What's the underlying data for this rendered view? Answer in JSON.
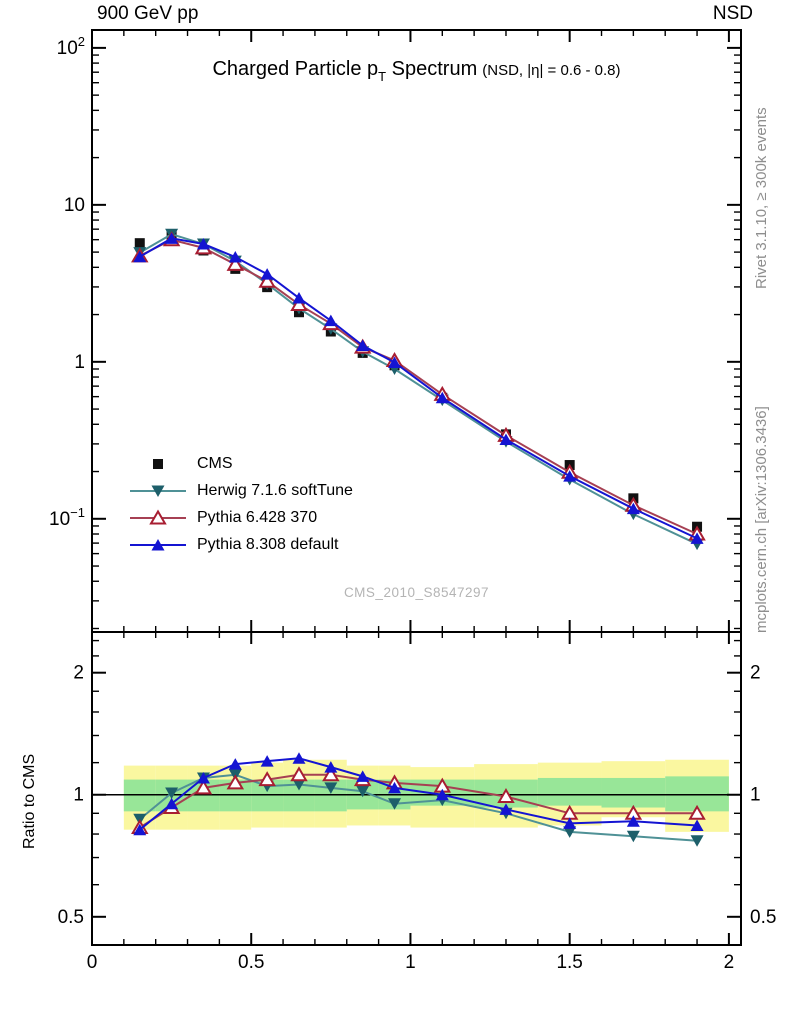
{
  "header": {
    "left": "900 GeV pp",
    "right": "NSD"
  },
  "title": {
    "main": "Charged Particle p",
    "sub": "T",
    "tail": " Spectrum",
    "condition": "(NSD, |η| = 0.6 - 0.8)"
  },
  "watermark": "CMS_2010_S8547297",
  "side_captions": {
    "top": "Rivet 3.1.10, ≥ 300k events",
    "bottom": "mcplots.cern.ch [arXiv:1306.3436]"
  },
  "ratio_ylabel": "Ratio to CMS",
  "colors": {
    "frame": "#000000",
    "cms": "#111111",
    "herwig_line": "#4f9196",
    "herwig_marker": "#1d5f6a",
    "pythia6_line": "#a64053",
    "pythia6_marker": "#a81e32",
    "pythia8": "#1414d2",
    "band_yellow": "#faf7a0",
    "band_green": "#98e698",
    "caption_gray": "#8e8e8e",
    "watermark_gray": "#b4b4b4"
  },
  "legend": [
    {
      "label": "CMS",
      "marker": "square",
      "color": "#111111",
      "line": false,
      "line_color": "#111111"
    },
    {
      "label": "Herwig 7.1.6 softTune",
      "marker": "triangle-down",
      "color": "#1d5f6a",
      "line": true,
      "line_color": "#4f9196"
    },
    {
      "label": "Pythia 6.428 370",
      "marker": "triangle-open",
      "color": "#a81e32",
      "line": true,
      "line_color": "#a64053"
    },
    {
      "label": "Pythia 8.308 default",
      "marker": "triangle-up",
      "color": "#1414d2",
      "line": true,
      "line_color": "#1414d2"
    }
  ],
  "chart_data": [
    {
      "id": "spectrum",
      "type": "line",
      "title": "Charged Particle pT Spectrum (NSD, |eta| = 0.6 - 0.8)",
      "xlabel": "",
      "ylabel": "",
      "yscale": "log",
      "xlim": [
        0,
        2.038
      ],
      "ylim": [
        0.019,
        130
      ],
      "grid": false,
      "x": [
        0.15,
        0.25,
        0.35,
        0.45,
        0.55,
        0.65,
        0.75,
        0.85,
        0.95,
        1.1,
        1.3,
        1.5,
        1.7,
        1.9
      ],
      "series": [
        {
          "name": "CMS",
          "marker": "square",
          "color": "#111111",
          "line": false,
          "line_color": "#111111",
          "values": [
            5.7,
            6.44,
            5.12,
            3.91,
            2.99,
            2.07,
            1.56,
            1.14,
            0.95,
            0.59,
            0.345,
            0.22,
            0.135,
            0.089
          ]
        },
        {
          "name": "Herwig 7.1.6 softTune",
          "marker": "triangle-down",
          "color": "#1d5f6a",
          "line": true,
          "line_color": "#4f9196",
          "values": [
            4.96,
            6.5,
            5.63,
            4.38,
            3.14,
            2.19,
            1.62,
            1.16,
            0.9,
            0.57,
            0.31,
            0.178,
            0.107,
            0.069
          ]
        },
        {
          "name": "Pythia 6.428 370",
          "marker": "triangle-open",
          "color": "#a81e32",
          "line": true,
          "line_color": "#a64053",
          "values": [
            4.73,
            5.99,
            5.32,
            4.18,
            3.26,
            2.32,
            1.75,
            1.24,
            1.02,
            0.62,
            0.34,
            0.198,
            0.122,
            0.08
          ]
        },
        {
          "name": "Pythia 8.308 default",
          "marker": "triangle-up",
          "color": "#1414d2",
          "line": true,
          "line_color": "#1414d2",
          "values": [
            4.67,
            6.12,
            5.63,
            4.65,
            3.62,
            2.55,
            1.83,
            1.27,
            0.99,
            0.59,
            0.32,
            0.187,
            0.116,
            0.075
          ]
        }
      ],
      "yticks": [
        {
          "v": 100,
          "base": "10",
          "exp": "2"
        },
        {
          "v": 10,
          "base": "10",
          "exp": ""
        },
        {
          "v": 1,
          "base": "1",
          "exp": ""
        },
        {
          "v": 0.1,
          "base": "10",
          "exp": "−1"
        }
      ],
      "xticks": [
        {
          "v": 0,
          "label": ""
        },
        {
          "v": 0.5,
          "label": ""
        },
        {
          "v": 1,
          "label": ""
        },
        {
          "v": 1.5,
          "label": ""
        },
        {
          "v": 2,
          "label": ""
        }
      ]
    },
    {
      "id": "ratio",
      "type": "line",
      "title": "Ratio to CMS",
      "xlabel": "",
      "ylabel": "Ratio to CMS",
      "yscale": "log",
      "xlim": [
        0,
        2.038
      ],
      "ylim": [
        0.426,
        2.52
      ],
      "grid": false,
      "ref_line": 1,
      "x": [
        0.15,
        0.25,
        0.35,
        0.45,
        0.55,
        0.65,
        0.75,
        0.85,
        0.95,
        1.1,
        1.3,
        1.5,
        1.7,
        1.9
      ],
      "series": [
        {
          "name": "Herwig 7.1.6 softTune",
          "marker": "triangle-down",
          "color": "#1d5f6a",
          "line": true,
          "line_color": "#4f9196",
          "values": [
            0.87,
            1.01,
            1.1,
            1.12,
            1.05,
            1.06,
            1.04,
            1.02,
            0.95,
            0.97,
            0.9,
            0.81,
            0.79,
            0.77
          ]
        },
        {
          "name": "Pythia 6.428 370",
          "marker": "triangle-open",
          "color": "#a81e32",
          "line": true,
          "line_color": "#a64053",
          "values": [
            0.83,
            0.93,
            1.04,
            1.07,
            1.09,
            1.12,
            1.12,
            1.09,
            1.07,
            1.05,
            0.99,
            0.9,
            0.9,
            0.9
          ]
        },
        {
          "name": "Pythia 8.308 default",
          "marker": "triangle-up",
          "color": "#1414d2",
          "line": true,
          "line_color": "#1414d2",
          "values": [
            0.82,
            0.95,
            1.1,
            1.19,
            1.21,
            1.23,
            1.17,
            1.11,
            1.04,
            1.0,
            0.92,
            0.85,
            0.86,
            0.84
          ]
        }
      ],
      "bands": [
        {
          "x0": 0.1,
          "x1": 0.2,
          "yellow": [
            0.82,
            1.18
          ],
          "green": [
            0.91,
            1.09
          ]
        },
        {
          "x0": 0.2,
          "x1": 0.3,
          "yellow": [
            0.82,
            1.18
          ],
          "green": [
            0.91,
            1.09
          ]
        },
        {
          "x0": 0.3,
          "x1": 0.4,
          "yellow": [
            0.82,
            1.18
          ],
          "green": [
            0.91,
            1.09
          ]
        },
        {
          "x0": 0.4,
          "x1": 0.5,
          "yellow": [
            0.82,
            1.18
          ],
          "green": [
            0.91,
            1.09
          ]
        },
        {
          "x0": 0.5,
          "x1": 0.6,
          "yellow": [
            0.83,
            1.2
          ],
          "green": [
            0.91,
            1.09
          ]
        },
        {
          "x0": 0.6,
          "x1": 0.7,
          "yellow": [
            0.83,
            1.22
          ],
          "green": [
            0.91,
            1.09
          ]
        },
        {
          "x0": 0.7,
          "x1": 0.8,
          "yellow": [
            0.83,
            1.22
          ],
          "green": [
            0.91,
            1.09
          ]
        },
        {
          "x0": 0.8,
          "x1": 0.9,
          "yellow": [
            0.84,
            1.18
          ],
          "green": [
            0.92,
            1.09
          ]
        },
        {
          "x0": 0.9,
          "x1": 1.0,
          "yellow": [
            0.84,
            1.18
          ],
          "green": [
            0.92,
            1.09
          ]
        },
        {
          "x0": 1.0,
          "x1": 1.2,
          "yellow": [
            0.83,
            1.17
          ],
          "green": [
            0.94,
            1.09
          ]
        },
        {
          "x0": 1.2,
          "x1": 1.4,
          "yellow": [
            0.83,
            1.19
          ],
          "green": [
            0.93,
            1.09
          ]
        },
        {
          "x0": 1.4,
          "x1": 1.6,
          "yellow": [
            0.84,
            1.2
          ],
          "green": [
            0.94,
            1.1
          ]
        },
        {
          "x0": 1.6,
          "x1": 1.8,
          "yellow": [
            0.88,
            1.21
          ],
          "green": [
            0.93,
            1.1
          ]
        },
        {
          "x0": 1.8,
          "x1": 2.0,
          "yellow": [
            0.81,
            1.22
          ],
          "green": [
            0.91,
            1.11
          ]
        }
      ],
      "yticks": [
        {
          "v": 0.5,
          "label": "0.5"
        },
        {
          "v": 1,
          "label": "1"
        },
        {
          "v": 2,
          "label": "2"
        }
      ],
      "ytick_minors": [
        0.6,
        0.7,
        0.8,
        0.9,
        1.2,
        1.4,
        1.6,
        1.8,
        2.2,
        2.4
      ],
      "xticks": [
        {
          "v": 0,
          "label": "0"
        },
        {
          "v": 0.5,
          "label": "0.5"
        },
        {
          "v": 1,
          "label": "1"
        },
        {
          "v": 1.5,
          "label": "1.5"
        },
        {
          "v": 2,
          "label": "2"
        }
      ]
    }
  ]
}
